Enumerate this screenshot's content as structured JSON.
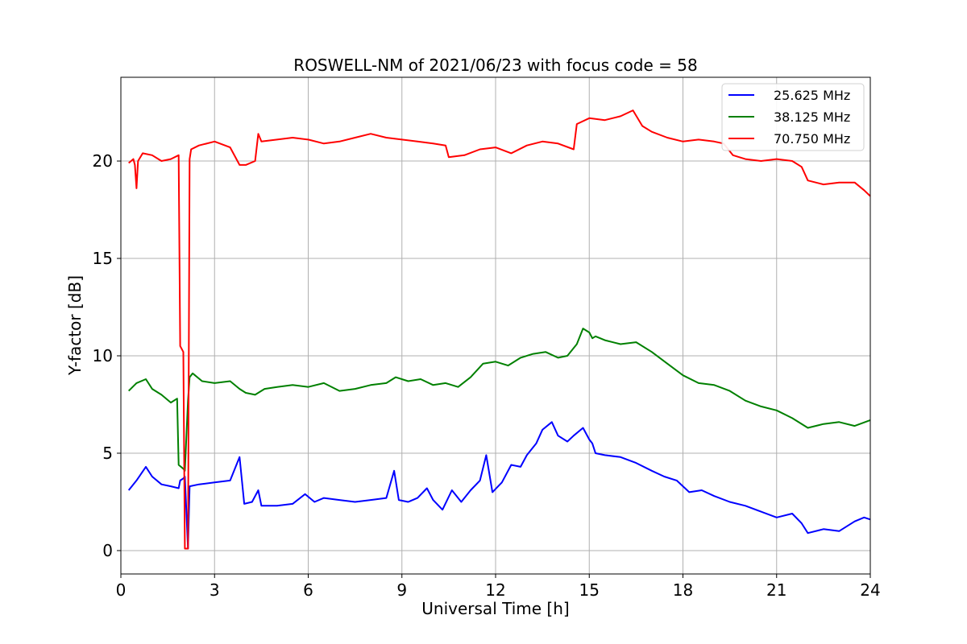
{
  "chart_data": {
    "type": "line",
    "title": "ROSWELL-NM of 2021/06/23 with focus code = 58",
    "xlabel": "Universal Time [h]",
    "ylabel": "Y-factor [dB]",
    "xlim": [
      0,
      24
    ],
    "ylim": [
      -1.2,
      24.3
    ],
    "xticks": [
      0,
      3,
      6,
      9,
      12,
      15,
      18,
      21,
      24
    ],
    "yticks": [
      0,
      5,
      10,
      15,
      20
    ],
    "grid": true,
    "legend_position": "top-right",
    "series": [
      {
        "name": "25.625 MHz",
        "color": "#0000ff",
        "x": [
          0.25,
          0.5,
          0.8,
          1.0,
          1.3,
          1.6,
          1.85,
          1.9,
          2.0,
          2.05,
          2.15,
          2.2,
          2.5,
          3.0,
          3.5,
          3.8,
          3.95,
          4.2,
          4.4,
          4.5,
          5.0,
          5.5,
          5.9,
          6.2,
          6.5,
          7.0,
          7.5,
          8.0,
          8.5,
          8.75,
          8.9,
          9.2,
          9.5,
          9.8,
          10.0,
          10.3,
          10.6,
          10.9,
          11.2,
          11.5,
          11.7,
          11.9,
          12.2,
          12.5,
          12.8,
          13.0,
          13.3,
          13.5,
          13.8,
          14.0,
          14.3,
          14.5,
          14.8,
          15.0,
          15.1,
          15.2,
          15.5,
          16.0,
          16.5,
          17.0,
          17.4,
          17.8,
          18.2,
          18.6,
          19.0,
          19.5,
          20.0,
          20.5,
          21.0,
          21.5,
          21.8,
          22.0,
          22.5,
          23.0,
          23.5,
          23.8,
          24.0
        ],
        "values": [
          3.1,
          3.6,
          4.3,
          3.8,
          3.4,
          3.3,
          3.2,
          3.6,
          3.7,
          3.8,
          0.1,
          3.3,
          3.4,
          3.5,
          3.6,
          4.8,
          2.4,
          2.5,
          3.1,
          2.3,
          2.3,
          2.4,
          2.9,
          2.5,
          2.7,
          2.6,
          2.5,
          2.6,
          2.7,
          4.1,
          2.6,
          2.5,
          2.7,
          3.2,
          2.6,
          2.1,
          3.1,
          2.5,
          3.1,
          3.6,
          4.9,
          3.0,
          3.5,
          4.4,
          4.3,
          4.9,
          5.5,
          6.2,
          6.6,
          5.9,
          5.6,
          5.9,
          6.3,
          5.7,
          5.5,
          5.0,
          4.9,
          4.8,
          4.5,
          4.1,
          3.8,
          3.6,
          3.0,
          3.1,
          2.8,
          2.5,
          2.3,
          2.0,
          1.7,
          1.9,
          1.4,
          0.9,
          1.1,
          1.0,
          1.5,
          1.7,
          1.6
        ]
      },
      {
        "name": "38.125 MHz",
        "color": "#008000",
        "x": [
          0.25,
          0.5,
          0.8,
          1.0,
          1.3,
          1.6,
          1.8,
          1.85,
          2.0,
          2.05,
          2.15,
          2.2,
          2.3,
          2.6,
          3.0,
          3.5,
          3.8,
          4.0,
          4.3,
          4.6,
          5.0,
          5.5,
          6.0,
          6.5,
          7.0,
          7.5,
          8.0,
          8.5,
          8.8,
          9.2,
          9.6,
          10.0,
          10.4,
          10.8,
          11.2,
          11.6,
          12.0,
          12.4,
          12.8,
          13.2,
          13.6,
          14.0,
          14.3,
          14.6,
          14.8,
          15.0,
          15.1,
          15.2,
          15.5,
          16.0,
          16.5,
          17.0,
          17.5,
          18.0,
          18.5,
          19.0,
          19.5,
          20.0,
          20.5,
          21.0,
          21.5,
          22.0,
          22.5,
          23.0,
          23.5,
          24.0
        ],
        "values": [
          8.2,
          8.6,
          8.8,
          8.3,
          8.0,
          7.6,
          7.8,
          4.4,
          4.2,
          4.1,
          7.7,
          8.9,
          9.1,
          8.7,
          8.6,
          8.7,
          8.3,
          8.1,
          8.0,
          8.3,
          8.4,
          8.5,
          8.4,
          8.6,
          8.2,
          8.3,
          8.5,
          8.6,
          8.9,
          8.7,
          8.8,
          8.5,
          8.6,
          8.4,
          8.9,
          9.6,
          9.7,
          9.5,
          9.9,
          10.1,
          10.2,
          9.9,
          10.0,
          10.6,
          11.4,
          11.2,
          10.9,
          11.0,
          10.8,
          10.6,
          10.7,
          10.2,
          9.6,
          9.0,
          8.6,
          8.5,
          8.2,
          7.7,
          7.4,
          7.2,
          6.8,
          6.3,
          6.5,
          6.6,
          6.4,
          6.7
        ]
      },
      {
        "name": "70.750 MHz",
        "color": "#ff0000",
        "x": [
          0.25,
          0.4,
          0.45,
          0.5,
          0.55,
          0.7,
          1.0,
          1.3,
          1.6,
          1.85,
          1.9,
          2.0,
          2.05,
          2.15,
          2.2,
          2.25,
          2.5,
          3.0,
          3.5,
          3.8,
          4.0,
          4.3,
          4.4,
          4.5,
          5.0,
          5.5,
          6.0,
          6.5,
          7.0,
          7.5,
          8.0,
          8.5,
          9.0,
          9.5,
          10.0,
          10.4,
          10.5,
          11.0,
          11.5,
          12.0,
          12.5,
          13.0,
          13.5,
          14.0,
          14.5,
          14.6,
          15.0,
          15.5,
          16.0,
          16.4,
          16.7,
          17.0,
          17.5,
          18.0,
          18.5,
          19.0,
          19.3,
          19.6,
          20.0,
          20.5,
          21.0,
          21.5,
          21.8,
          22.0,
          22.5,
          23.0,
          23.5,
          23.8,
          24.0
        ],
        "values": [
          19.9,
          20.1,
          19.8,
          18.6,
          20.0,
          20.4,
          20.3,
          20.0,
          20.1,
          20.3,
          10.5,
          10.2,
          0.1,
          0.1,
          20.1,
          20.6,
          20.8,
          21.0,
          20.7,
          19.8,
          19.8,
          20.0,
          21.4,
          21.0,
          21.1,
          21.2,
          21.1,
          20.9,
          21.0,
          21.2,
          21.4,
          21.2,
          21.1,
          21.0,
          20.9,
          20.8,
          20.2,
          20.3,
          20.6,
          20.7,
          20.4,
          20.8,
          21.0,
          20.9,
          20.6,
          21.9,
          22.2,
          22.1,
          22.3,
          22.6,
          21.8,
          21.5,
          21.2,
          21.0,
          21.1,
          21.0,
          20.9,
          20.3,
          20.1,
          20.0,
          20.1,
          20.0,
          19.7,
          19.0,
          18.8,
          18.9,
          18.9,
          18.5,
          18.2
        ]
      }
    ]
  }
}
